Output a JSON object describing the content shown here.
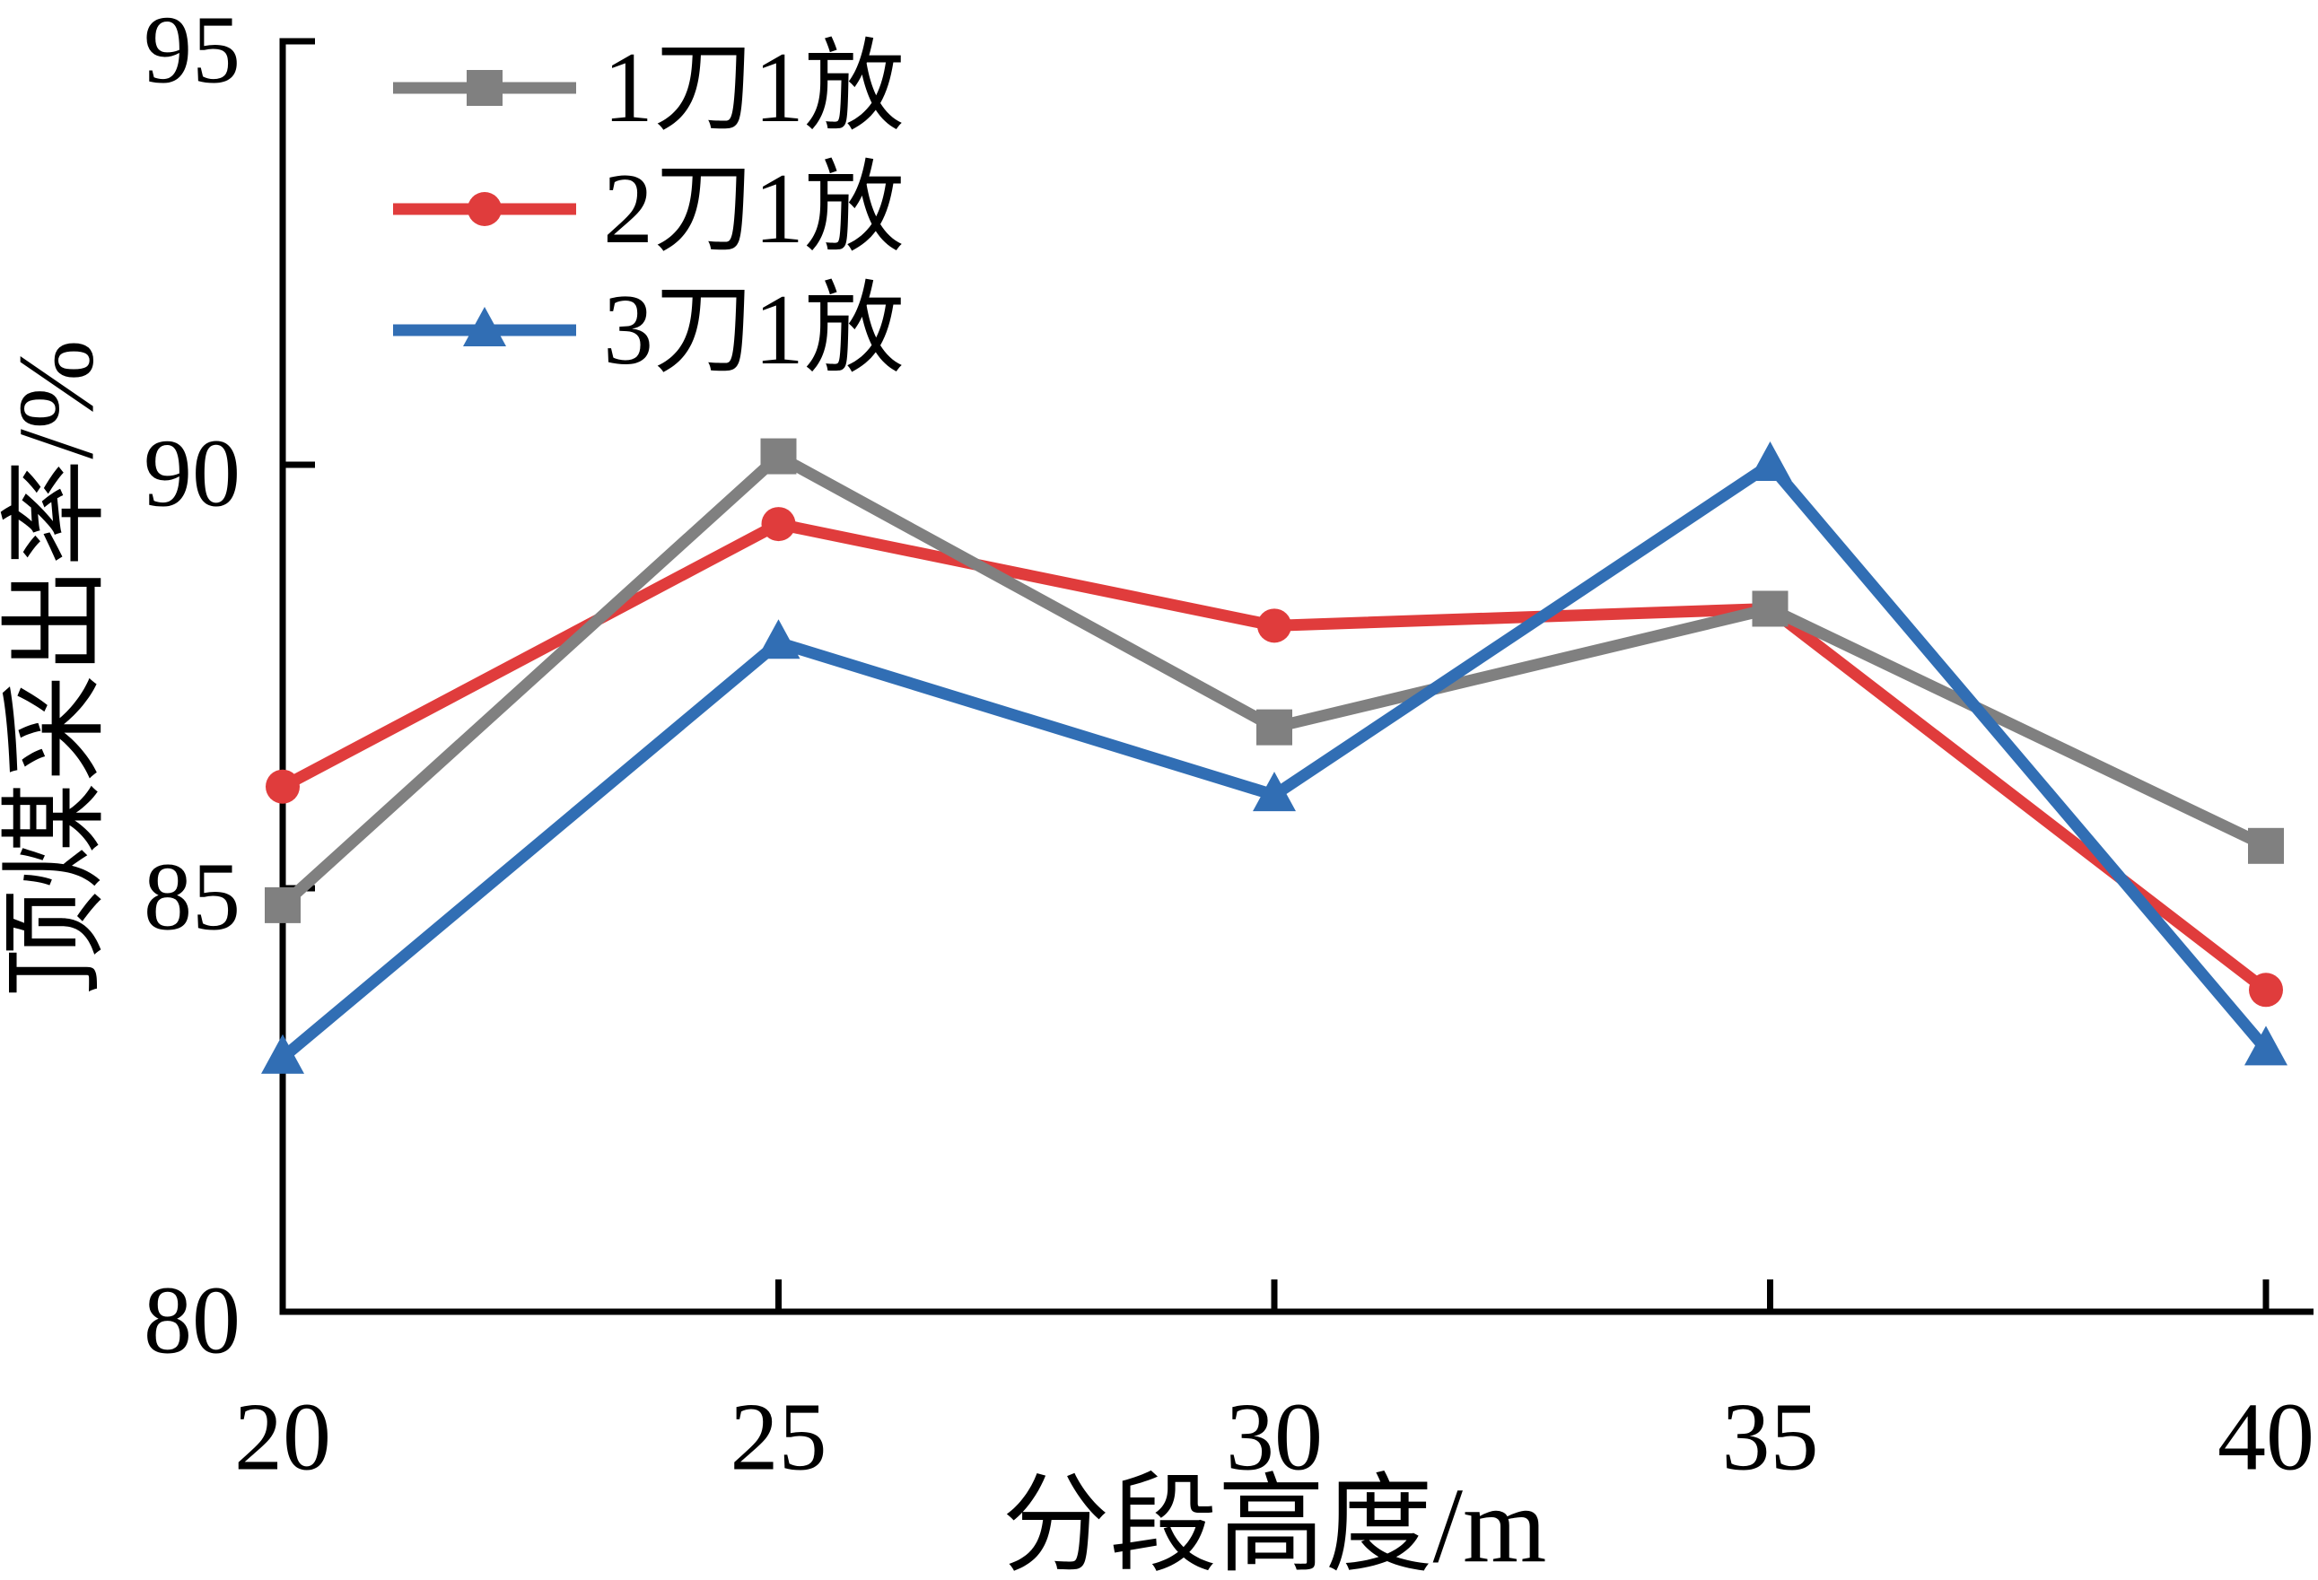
{
  "figure": {
    "background": "#ffffff",
    "axis_color": "#000000"
  },
  "chart_data": {
    "type": "line",
    "title": "",
    "xlabel": "分段高度/m",
    "ylabel": "顶煤采出率/%",
    "x": [
      20,
      25,
      30,
      35,
      40
    ],
    "xticks": [
      20,
      25,
      30,
      35,
      40
    ],
    "yticks": [
      80,
      85,
      90,
      95
    ],
    "xlim": [
      20,
      40.5
    ],
    "ylim": [
      80,
      95
    ],
    "grid": false,
    "legend": {
      "position": "top-left-inside",
      "entries": [
        "1刀1放",
        "2刀1放",
        "3刀1放"
      ]
    },
    "series": [
      {
        "name": "1刀1放",
        "color": "#808080",
        "marker": "square",
        "values": [
          84.8,
          90.1,
          86.9,
          88.3,
          85.5
        ],
        "z": 2
      },
      {
        "name": "2刀1放",
        "color": "#e03c3c",
        "marker": "circle",
        "values": [
          86.2,
          89.3,
          88.1,
          88.3,
          83.8
        ],
        "z": 1
      },
      {
        "name": "3刀1放",
        "color": "#316eb4",
        "marker": "triangle",
        "values": [
          83.0,
          87.9,
          86.1,
          90.0,
          83.1
        ],
        "z": 3
      }
    ]
  }
}
